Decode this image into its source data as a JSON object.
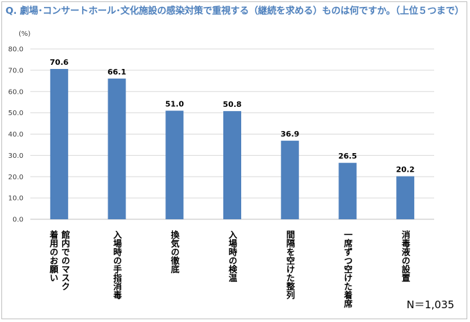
{
  "chart_data": {
    "type": "bar",
    "title": "Q. 劇場･コンサートホール･文化施設の感染対策で重視する（継続を求める）ものは何ですか。（上位５つまで）",
    "ylabel": "(%)",
    "ylim": [
      0,
      80
    ],
    "yticks": [
      "0.0",
      "10.0",
      "20.0",
      "30.0",
      "40.0",
      "50.0",
      "60.0",
      "70.0",
      "80.0"
    ],
    "grid": true,
    "categories": [
      "館内でのマスク着用のお願い",
      "入場時の手指消毒",
      "換気の徹底",
      "入場時の検温",
      "間隔を空けた整列",
      "一席ずつ空けた着席",
      "消毒液の設置"
    ],
    "category_columns": [
      [
        "館内でのマスク",
        "着用のお願い"
      ],
      [
        "入場時の手指消毒"
      ],
      [
        "換気の徹底"
      ],
      [
        "入場時の検温"
      ],
      [
        "間隔を空けた整列"
      ],
      [
        "一席ずつ空けた着席"
      ],
      [
        "消毒液の設置"
      ]
    ],
    "values": [
      70.6,
      66.1,
      51.0,
      50.8,
      36.9,
      26.5,
      20.2
    ],
    "value_labels": [
      "70.6",
      "66.1",
      "51.0",
      "50.8",
      "36.9",
      "26.5",
      "20.2"
    ],
    "bar_color": "#4f81bd",
    "sample_note": "N＝1,035"
  },
  "colors": {
    "title": "#4f81bd",
    "bar": "#4f81bd",
    "grid": "#d9d9d9"
  }
}
